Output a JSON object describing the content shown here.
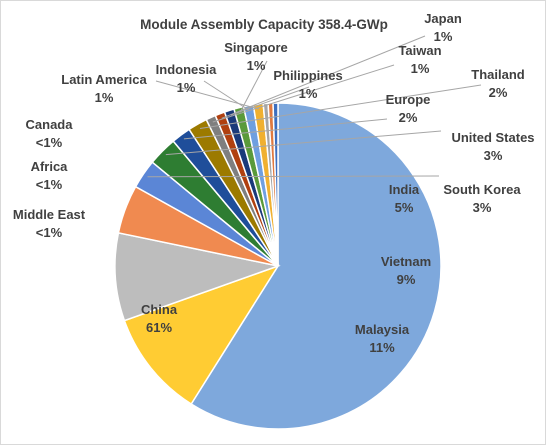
{
  "chart_data": {
    "type": "pie",
    "title": "Module Assembly Capacity 358.4-GWp",
    "slices": [
      {
        "label": "China",
        "pct_label": "61%",
        "value": 61,
        "color": "#7ea8dc"
      },
      {
        "label": "Malaysia",
        "pct_label": "11%",
        "value": 11,
        "color": "#ffcc33"
      },
      {
        "label": "Vietnam",
        "pct_label": "9%",
        "value": 9,
        "color": "#bdbdbd"
      },
      {
        "label": "India",
        "pct_label": "5%",
        "value": 5,
        "color": "#f08a50"
      },
      {
        "label": "South Korea",
        "pct_label": "3%",
        "value": 3,
        "color": "#5b86d6"
      },
      {
        "label": "United States",
        "pct_label": "3%",
        "value": 3,
        "color": "#2e7d32"
      },
      {
        "label": "Europe",
        "pct_label": "2%",
        "value": 2,
        "color": "#1f4e9a"
      },
      {
        "label": "Thailand",
        "pct_label": "2%",
        "value": 2,
        "color": "#9c7a00"
      },
      {
        "label": "Taiwan",
        "pct_label": "1%",
        "value": 1,
        "color": "#7f7f7f"
      },
      {
        "label": "Japan",
        "pct_label": "1%",
        "value": 1,
        "color": "#b04010"
      },
      {
        "label": "Philippines",
        "pct_label": "1%",
        "value": 1,
        "color": "#1a3a7a"
      },
      {
        "label": "Singapore",
        "pct_label": "1%",
        "value": 1,
        "color": "#5a9a3a"
      },
      {
        "label": "Indonesia",
        "pct_label": "1%",
        "value": 1,
        "color": "#6f9fe0"
      },
      {
        "label": "Latin America",
        "pct_label": "1%",
        "value": 1,
        "color": "#f0b030"
      },
      {
        "label": "Canada",
        "pct_label": "<1%",
        "value": 0.5,
        "color": "#a6a6a6"
      },
      {
        "label": "Africa",
        "pct_label": "<1%",
        "value": 0.5,
        "color": "#e07a40"
      },
      {
        "label": "Middle East",
        "pct_label": "<1%",
        "value": 0.5,
        "color": "#3d6fbf"
      }
    ],
    "legend": "none",
    "label_color": "#404040"
  }
}
